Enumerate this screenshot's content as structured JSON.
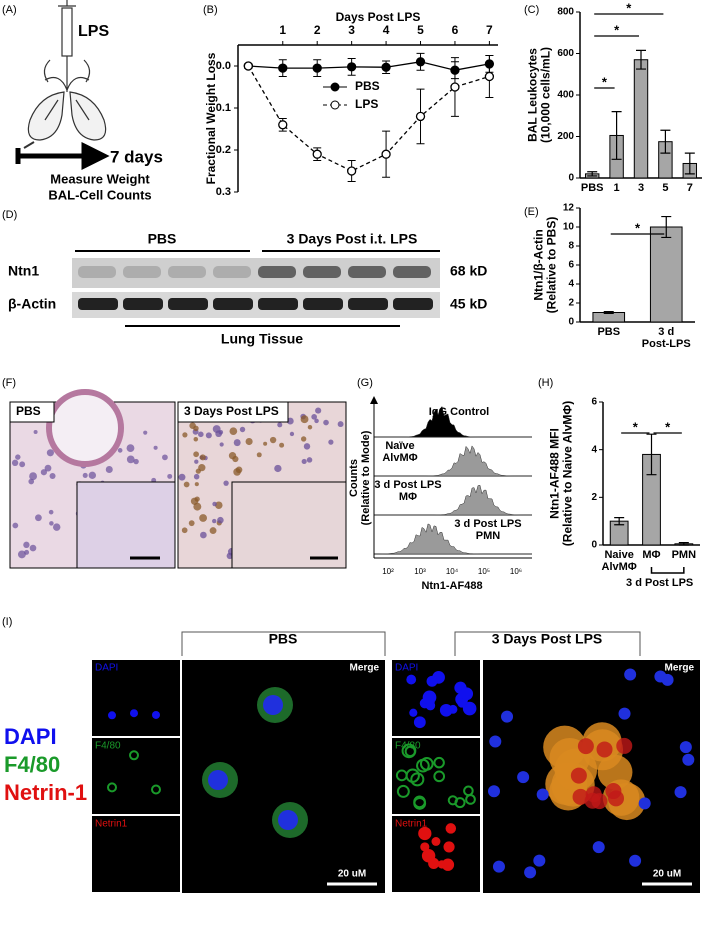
{
  "panel_labels": [
    "(A)",
    "(B)",
    "(C)",
    "(D)",
    "(E)",
    "(F)",
    "(G)",
    "(H)",
    "(I)"
  ],
  "panel_a": {
    "drug": "LPS",
    "duration": "7 days",
    "readouts": [
      "Measure Weight",
      "BAL-Cell Counts"
    ]
  },
  "chart_data": [
    {
      "type": "line",
      "title": "Days Post LPS",
      "y_label": "Fractional Weight Loss",
      "x": [
        0,
        1,
        2,
        3,
        4,
        5,
        6,
        7
      ],
      "xlim": [
        -0.3,
        7.25
      ],
      "xticks": [
        1,
        2,
        3,
        4,
        5,
        6,
        7
      ],
      "ylim": [
        -0.05,
        0.3
      ],
      "y_inverted": true,
      "yticks": [
        {
          "value": 0,
          "label": "0.0"
        },
        0.1,
        0.2,
        0.3
      ],
      "legend": "upper center",
      "series": [
        {
          "name": "PBS",
          "color": "#000000",
          "marker": "filled",
          "line_style": "solid",
          "values": [
            0,
            0.005,
            0.005,
            0.002,
            0.003,
            -0.01,
            0.01,
            -0.005
          ],
          "errors": [
            0.005,
            0.02,
            0.02,
            0.02,
            0.015,
            0.02,
            0.02,
            0.02
          ]
        },
        {
          "name": "LPS",
          "color": "#000000",
          "marker": "open",
          "line_style": "dashed",
          "values": [
            0,
            0.14,
            0.21,
            0.25,
            0.21,
            0.12,
            0.05,
            0.025
          ],
          "errors": [
            0.005,
            0.015,
            0.015,
            0.025,
            0.055,
            0.065,
            0.07,
            0.05
          ]
        }
      ]
    },
    {
      "type": "bar",
      "y_label": "BAL Leukocytes\n(10,000 cells/mL)",
      "categories": [
        "PBS",
        "1",
        "3",
        "5",
        "7"
      ],
      "values": [
        20,
        205,
        570,
        175,
        70
      ],
      "errors": [
        10,
        115,
        45,
        55,
        50
      ],
      "color": "#a6a6a6",
      "ylim": [
        0,
        800
      ],
      "yticks": [
        0,
        200,
        400,
        600,
        800
      ],
      "annotations": [
        "*",
        "*",
        "*"
      ]
    },
    {
      "type": "bar",
      "y_label": "Ntn1/β-Actin\n(Relative to PBS)",
      "categories": [
        "PBS",
        "3 d\nPost-LPS"
      ],
      "values": [
        1.0,
        10.0
      ],
      "errors": [
        0.1,
        1.1
      ],
      "color": "#a6a6a6",
      "ylim": [
        0,
        12
      ],
      "yticks": [
        0,
        2,
        4,
        6,
        8,
        10,
        12
      ],
      "annotations": [
        "*"
      ]
    },
    {
      "type": "bar",
      "y_label": "Ntn1-AF488 MFI\n(Relative to Naive AlvMΦ)",
      "categories": [
        "Naive\nAlvMΦ",
        "MΦ",
        "PMN"
      ],
      "values": [
        1.0,
        3.8,
        0.05
      ],
      "errors": [
        0.15,
        0.85,
        0.05
      ],
      "color": "#a6a6a6",
      "ylim": [
        0,
        6
      ],
      "yticks": [
        0,
        2,
        4,
        6
      ],
      "annotations": [
        "*",
        "*"
      ],
      "group_label": "3 d Post LPS"
    }
  ],
  "panel_d": {
    "groups": [
      "PBS",
      "3 Days Post i.t. LPS"
    ],
    "proteins": [
      "Ntn1",
      "β-Actin"
    ],
    "sizes": [
      "68 kD",
      "45 kD"
    ],
    "tissue": "Lung Tissue"
  },
  "panel_f": {
    "conditions": [
      "PBS",
      "3 Days Post LPS"
    ]
  },
  "panel_g": {
    "rows": [
      "IgG Control",
      "Naïve\nAlvMΦ",
      "3 d Post LPS\nMΦ",
      "3 d Post LPS\nPMN"
    ],
    "y_label": "Counts\n(Relative to Mode)",
    "x_label": "Ntn1-AF488",
    "x_tick_labels": [
      "10²",
      "10³",
      "10⁴",
      "10⁵",
      "10⁶"
    ]
  },
  "panel_i": {
    "conditions": [
      "PBS",
      "3 Days Post LPS"
    ],
    "channels": [
      "DAPI",
      "F4/80",
      "Netrin1"
    ],
    "merge": "Merge",
    "legend": [
      "DAPI",
      "F4/80",
      "Netrin-1"
    ],
    "scale_bar": "20 uM"
  }
}
